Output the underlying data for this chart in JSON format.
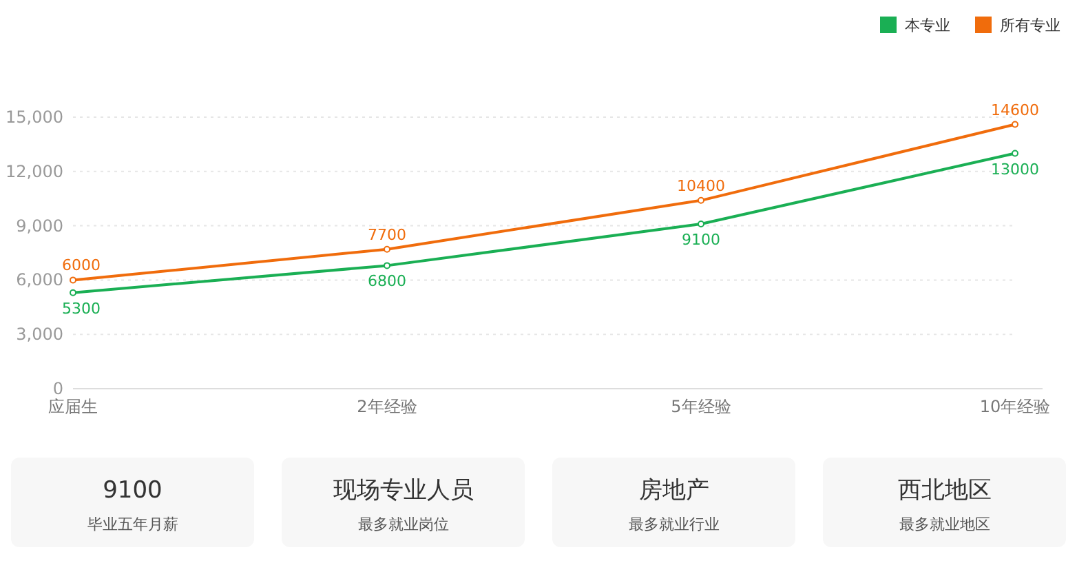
{
  "chart_data": [
    {
      "type": "line",
      "categories": [
        "应届生",
        "2年经验",
        "5年经验",
        "10年经验"
      ],
      "series": [
        {
          "name": "本专业",
          "color": "#1aaf54",
          "values": [
            5300,
            6800,
            9100,
            13000
          ]
        },
        {
          "name": "所有专业",
          "color": "#f06c0c",
          "values": [
            6000,
            7700,
            10400,
            14600
          ]
        }
      ],
      "ylim": [
        0,
        15000
      ],
      "yticks": [
        0,
        {
          "value": 3000,
          "label": "3,000"
        },
        {
          "value": 6000,
          "label": "6,000"
        },
        {
          "value": 9000,
          "label": "9,000"
        },
        {
          "value": 12000,
          "label": "12,000"
        },
        {
          "value": 15000,
          "label": "15,000"
        }
      ],
      "grid": "y",
      "legend": "top right",
      "marker": "circle",
      "data_labels": true
    },
    {
      "type": "other",
      "annotations": [
        "9100",
        "毕业五年月薪",
        "现场专业人员",
        "最多就业岗位",
        "房地产",
        "最多就业行业",
        "西北地区",
        "最多就业地区"
      ]
    }
  ]
}
